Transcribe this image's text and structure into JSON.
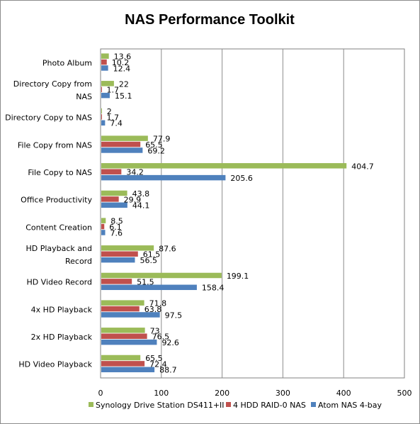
{
  "chart_data": {
    "type": "bar",
    "orientation": "horizontal",
    "title": "NAS Performance Toolkit",
    "xlabel": "",
    "ylabel": "",
    "xlim": [
      0,
      500
    ],
    "ticks": [
      0,
      100,
      200,
      300,
      400,
      500
    ],
    "grid": true,
    "legend_position": "bottom",
    "categories": [
      [
        "Photo Album"
      ],
      [
        "Directory Copy from",
        "NAS"
      ],
      [
        "Directory Copy to NAS"
      ],
      [
        "File Copy from NAS"
      ],
      [
        "File Copy to NAS"
      ],
      [
        "Office Productivity"
      ],
      [
        "Content Creation"
      ],
      [
        "HD Playback and",
        "Record"
      ],
      [
        "HD Video Record"
      ],
      [
        "4x HD Playback"
      ],
      [
        "2x HD Playback"
      ],
      [
        "HD Video Playback"
      ]
    ],
    "series": [
      {
        "name": "Synology Drive Station  DS411+II",
        "color": "#9bbb59",
        "values": [
          13.6,
          22,
          2,
          77.9,
          404.7,
          43.8,
          8.5,
          87.6,
          199.1,
          71.8,
          73,
          65.5
        ]
      },
      {
        "name": "4 HDD RAID-0  NAS",
        "color": "#c0504d",
        "values": [
          10.2,
          1.7,
          1.7,
          65.5,
          34.2,
          29.9,
          6.1,
          61.5,
          51.5,
          63.8,
          76.5,
          72.4
        ]
      },
      {
        "name": "Atom NAS 4-bay",
        "color": "#4f81bd",
        "values": [
          12.4,
          15.1,
          7.4,
          69.2,
          205.6,
          44.1,
          7.6,
          56.5,
          158.4,
          97.5,
          92.6,
          88.7
        ]
      }
    ]
  }
}
